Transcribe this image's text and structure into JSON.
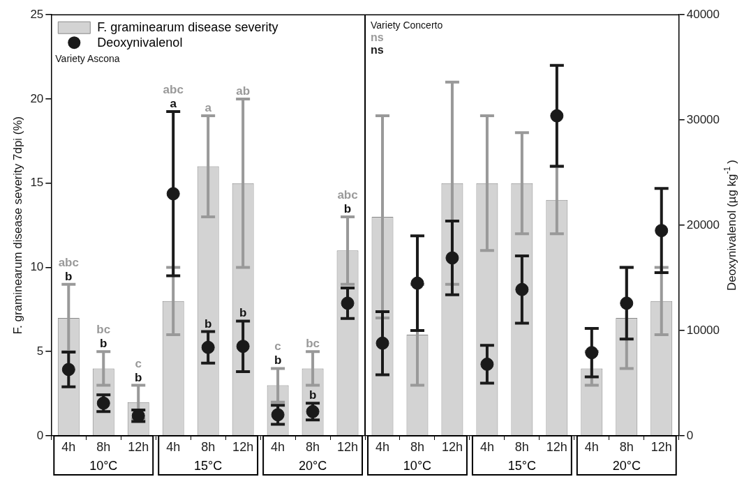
{
  "chart_data": {
    "type": "bar",
    "ylabel": "F. graminearum disease severity 7dpi (%)",
    "y2label": "Deoxynivalenol (µg kg$^{-1}$)",
    "categories": [
      "4h",
      "8h",
      "12h",
      "4h",
      "8h",
      "12h",
      "4h",
      "8h",
      "12h",
      "4h",
      "8h",
      "12h",
      "4h",
      "8h",
      "12h",
      "4h",
      "8h",
      "12h"
    ],
    "series": [
      {
        "name": "F. graminearum disease severity",
        "color": "#d3d3d3",
        "values": [
          7,
          4,
          2,
          8,
          16,
          15,
          3,
          4,
          11,
          13,
          6,
          15,
          15,
          15,
          14,
          4,
          7,
          8
        ],
        "errors": [
          2,
          1,
          1,
          2,
          3,
          5,
          1,
          1,
          2,
          6,
          3,
          6,
          4,
          3,
          2,
          1,
          3,
          2
        ]
      },
      {
        "name": "Deoxynivalenol",
        "type": "scatter",
        "axis": "y2",
        "color": "#1a1a1a",
        "values": [
          6300,
          3100,
          1900,
          23000,
          8400,
          8500,
          2000,
          2300,
          12600,
          8800,
          14500,
          16900,
          6800,
          13900,
          30400,
          7900,
          12600,
          19500
        ],
        "errors": [
          1650,
          800,
          550,
          7800,
          1500,
          2400,
          900,
          800,
          1450,
          3000,
          4500,
          3500,
          1800,
          3200,
          4800,
          2300,
          3400,
          4000
        ]
      }
    ],
    "ylim": [
      0,
      25
    ],
    "yticks": [
      0,
      5,
      10,
      15,
      20,
      25
    ],
    "y2lim": [
      0,
      40000
    ],
    "y2ticks": [
      0,
      10000,
      20000,
      30000,
      40000
    ],
    "grid": false,
    "legend": "top left",
    "marker": "circle",
    "annotations": [
      "Variety Ascona",
      "Variety Concerto",
      "ns",
      "ns",
      "10°C",
      "15°C",
      "20°C",
      "10°C",
      "15°C",
      "20°C",
      "abc",
      "b",
      "bc",
      "b",
      "c",
      "b",
      "abc",
      "a",
      "a",
      "b",
      "ab",
      "b",
      "c",
      "b",
      "bc",
      "b",
      "abc",
      "b"
    ]
  }
}
